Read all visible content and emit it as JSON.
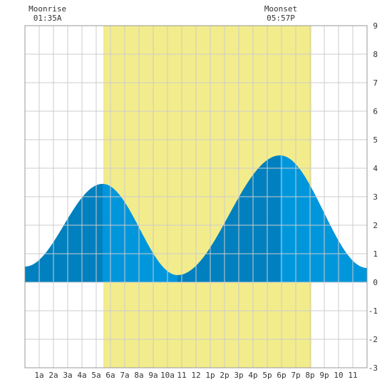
{
  "chart_data": {
    "type": "area",
    "x_unit": "hour",
    "xlim": [
      0,
      24
    ],
    "ylim": [
      -3,
      9
    ],
    "y_ticks": [
      -3,
      -2,
      -1,
      0,
      1,
      2,
      3,
      4,
      5,
      6,
      7,
      8,
      9
    ],
    "x_ticks": [
      {
        "x": 1,
        "label": "1a"
      },
      {
        "x": 2,
        "label": "2a"
      },
      {
        "x": 3,
        "label": "3a"
      },
      {
        "x": 4,
        "label": "4a"
      },
      {
        "x": 5,
        "label": "5a"
      },
      {
        "x": 6,
        "label": "6a"
      },
      {
        "x": 7,
        "label": "7a"
      },
      {
        "x": 8,
        "label": "8a"
      },
      {
        "x": 9,
        "label": "9a"
      },
      {
        "x": 10,
        "label": "10a"
      },
      {
        "x": 11,
        "label": "11"
      },
      {
        "x": 12,
        "label": "12"
      },
      {
        "x": 13,
        "label": "1p"
      },
      {
        "x": 14,
        "label": "2p"
      },
      {
        "x": 15,
        "label": "3p"
      },
      {
        "x": 16,
        "label": "4p"
      },
      {
        "x": 17,
        "label": "5p"
      },
      {
        "x": 18,
        "label": "6p"
      },
      {
        "x": 19,
        "label": "7p"
      },
      {
        "x": 20,
        "label": "8p"
      },
      {
        "x": 21,
        "label": "9p"
      },
      {
        "x": 22,
        "label": "10"
      },
      {
        "x": 23,
        "label": "11"
      }
    ],
    "daylight": {
      "start": 5.5,
      "end": 20.1,
      "color": "#f2ec8c"
    },
    "tide_points": [
      {
        "x": 0.0,
        "y": 0.55
      },
      {
        "x": 5.45,
        "y": 3.45
      },
      {
        "x": 10.7,
        "y": 0.25
      },
      {
        "x": 17.9,
        "y": 4.45
      },
      {
        "x": 24.0,
        "y": 0.5
      }
    ],
    "tide_colors": {
      "rising": "#0080be",
      "falling": "#0096dc"
    },
    "grid": true,
    "grid_color": "#cccccc",
    "moon_events": [
      {
        "title": "Moonrise",
        "time": "01:35A",
        "x": 1.58
      },
      {
        "title": "Moonset",
        "time": "05:57P",
        "x": 17.95
      }
    ]
  }
}
